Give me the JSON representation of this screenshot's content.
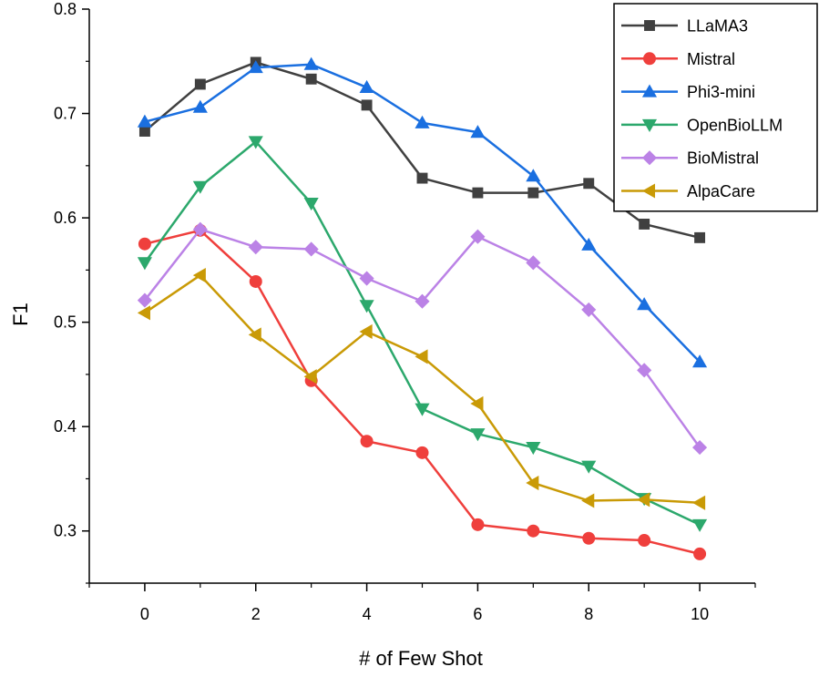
{
  "chart_data": {
    "type": "line",
    "xlabel": "# of Few Shot",
    "ylabel": "F1",
    "x": [
      0,
      1,
      2,
      3,
      4,
      5,
      6,
      7,
      8,
      9,
      10
    ],
    "xlim": [
      -1,
      11
    ],
    "ylim": [
      0.25,
      0.8
    ],
    "xticks": [
      0,
      2,
      4,
      6,
      8,
      10
    ],
    "yticks": [
      0.3,
      0.4,
      0.5,
      0.6,
      0.7,
      0.8
    ],
    "ytick_labels": [
      "0.3",
      "0.4",
      "0.5",
      "0.6",
      "0.7",
      "0.8"
    ],
    "grid": false,
    "legend_position": "top-right",
    "series": [
      {
        "name": "LLaMA3",
        "color": "#404040",
        "marker": "square",
        "values": [
          0.683,
          0.728,
          0.749,
          0.733,
          0.708,
          0.638,
          0.624,
          0.624,
          0.633,
          0.594,
          0.581
        ]
      },
      {
        "name": "Mistral",
        "color": "#ef3f3c",
        "marker": "circle",
        "values": [
          0.575,
          0.588,
          0.539,
          0.444,
          0.386,
          0.375,
          0.306,
          0.3,
          0.293,
          0.291,
          0.278
        ]
      },
      {
        "name": "Phi3-mini",
        "color": "#1a6fe0",
        "marker": "triangle-up",
        "values": [
          0.692,
          0.706,
          0.744,
          0.747,
          0.725,
          0.691,
          0.682,
          0.64,
          0.574,
          0.517,
          0.462
        ]
      },
      {
        "name": "OpenBioLLM",
        "color": "#2ca86c",
        "marker": "triangle-down",
        "values": [
          0.557,
          0.63,
          0.673,
          0.614,
          0.516,
          0.417,
          0.393,
          0.38,
          0.362,
          0.331,
          0.306
        ]
      },
      {
        "name": "BioMistral",
        "color": "#bb82e6",
        "marker": "diamond",
        "values": [
          0.521,
          0.589,
          0.572,
          0.57,
          0.542,
          0.52,
          0.582,
          0.557,
          0.512,
          0.454,
          0.38
        ]
      },
      {
        "name": "AlpaCare",
        "color": "#c99a06",
        "marker": "triangle-left",
        "values": [
          0.509,
          0.545,
          0.488,
          0.448,
          0.491,
          0.467,
          0.422,
          0.346,
          0.329,
          0.33,
          0.327
        ]
      }
    ]
  }
}
